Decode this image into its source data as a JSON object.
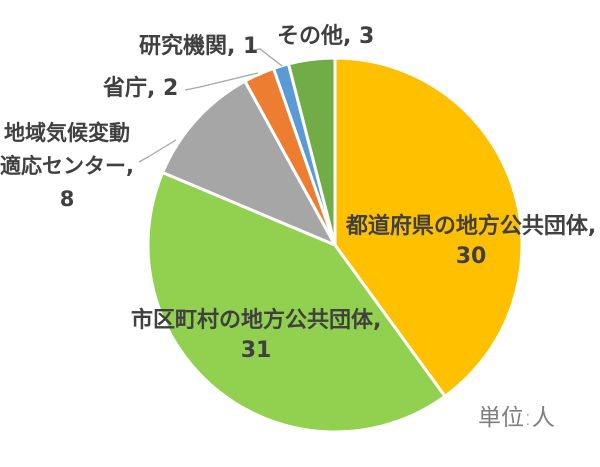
{
  "chart_data": {
    "type": "pie",
    "title": "",
    "unit_note": "単位:人",
    "total": 75,
    "start_angle_deg": 0,
    "direction": "clockwise",
    "legend_position": "none",
    "gridlines": false,
    "slice_border_color": "#FFFFFF",
    "segments": [
      {
        "label": "都道府県の地方公共団体",
        "value": 30,
        "color": "#FFC000"
      },
      {
        "label": "市区町村の地方公共団体",
        "value": 31,
        "color": "#92D050"
      },
      {
        "label": "地域気候変動適応センター",
        "value": 8,
        "color": "#A6A6A6"
      },
      {
        "label": "省庁",
        "value": 2,
        "color": "#ED7D31"
      },
      {
        "label": "研究機関",
        "value": 1,
        "color": "#5B9BD5"
      },
      {
        "label": "その他",
        "value": 3,
        "color": "#70AD47"
      }
    ]
  },
  "labels": {
    "prefectures": {
      "line1": "都道府県の地方公共団体,",
      "line2": "30"
    },
    "municipalities": {
      "line1": "市区町村の地方公共団体,",
      "line2": "31"
    },
    "regional_center": {
      "line1": "地域気候変動",
      "line2": "適応センター,",
      "line3": "8"
    },
    "ministry": {
      "text": "省庁, 2"
    },
    "research": {
      "text": "研究機関, 1"
    },
    "other": {
      "text": "その他, 3"
    },
    "unit": {
      "text": "単位:人"
    }
  },
  "style": {
    "label_color": "#404040",
    "unit_color": "#7F7F7F",
    "leader_color": "#A6A6A6",
    "background": "#FFFFFF"
  }
}
